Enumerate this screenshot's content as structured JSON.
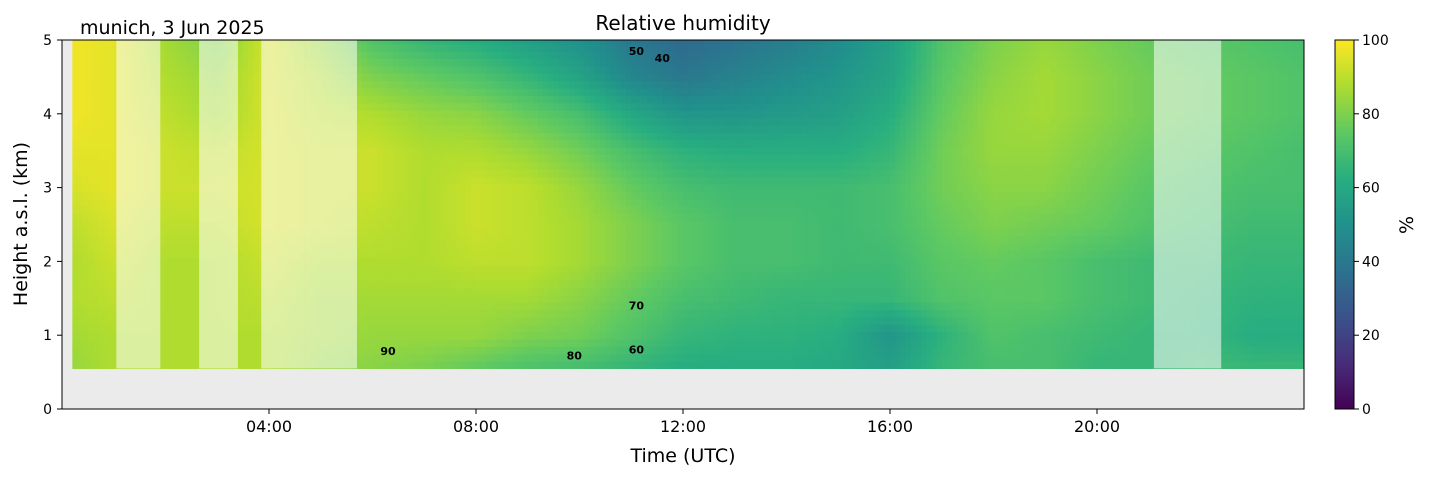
{
  "chart_data": {
    "type": "heatmap",
    "title": "Relative humidity",
    "subtitle": "munich, 3 Jun 2025",
    "xlabel": "Time (UTC)",
    "ylabel": "Height a.s.l. (km)",
    "xlim": [
      0,
      24
    ],
    "ylim": [
      0,
      5
    ],
    "x_ticks": [
      {
        "value": 4,
        "label": "04:00"
      },
      {
        "value": 8,
        "label": "08:00"
      },
      {
        "value": 12,
        "label": "12:00"
      },
      {
        "value": 16,
        "label": "16:00"
      },
      {
        "value": 20,
        "label": "20:00"
      }
    ],
    "y_ticks": [
      {
        "value": 0,
        "label": "0"
      },
      {
        "value": 1,
        "label": "1"
      },
      {
        "value": 2,
        "label": "2"
      },
      {
        "value": 3,
        "label": "3"
      },
      {
        "value": 4,
        "label": "4"
      },
      {
        "value": 5,
        "label": "5"
      }
    ],
    "colorbar": {
      "label": "%",
      "colormap": "viridis",
      "range": [
        0,
        100
      ],
      "ticks": [
        {
          "value": 0,
          "label": "0"
        },
        {
          "value": 20,
          "label": "20"
        },
        {
          "value": 40,
          "label": "40"
        },
        {
          "value": 60,
          "label": "60"
        },
        {
          "value": 80,
          "label": "80"
        },
        {
          "value": 100,
          "label": "100"
        }
      ]
    },
    "data_height_range_km": [
      0.55,
      5
    ],
    "no_data_fill": "#ebebeb",
    "masked_time_ranges": [
      [
        1.05,
        1.9
      ],
      [
        2.65,
        3.4
      ],
      [
        3.85,
        4.7
      ],
      [
        4.7,
        5.7
      ],
      [
        21.1,
        22.4
      ]
    ],
    "contour_labels": [
      {
        "value": "90",
        "t": 6.3,
        "h": 0.73
      },
      {
        "value": "80",
        "t": 9.9,
        "h": 0.67
      },
      {
        "value": "60",
        "t": 11.1,
        "h": 0.75
      },
      {
        "value": "70",
        "t": 11.1,
        "h": 1.35
      },
      {
        "value": "50",
        "t": 11.1,
        "h": 4.8
      },
      {
        "value": "40",
        "t": 11.6,
        "h": 4.7
      }
    ],
    "rh_field": {
      "times": [
        0.2,
        1.0,
        2.0,
        3.0,
        4.0,
        5.0,
        6.0,
        7.0,
        8.0,
        9.0,
        10.0,
        11.0,
        12.0,
        13.0,
        14.0,
        15.0,
        16.0,
        17.0,
        18.0,
        19.0,
        20.0,
        21.0,
        22.0,
        23.0,
        23.9
      ],
      "heights": [
        0.6,
        1.0,
        1.5,
        2.0,
        2.5,
        3.0,
        3.5,
        4.0,
        4.5,
        5.0
      ],
      "values": [
        [
          84,
          88,
          88,
          88,
          88,
          84,
          82,
          80,
          76,
          72,
          70,
          66,
          62,
          62,
          62,
          60,
          56,
          66,
          70,
          70,
          66,
          66,
          68,
          66,
          66
        ],
        [
          86,
          88,
          88,
          88,
          88,
          86,
          84,
          84,
          84,
          80,
          78,
          72,
          66,
          64,
          64,
          62,
          52,
          64,
          72,
          70,
          68,
          66,
          66,
          62,
          62
        ],
        [
          88,
          90,
          88,
          88,
          90,
          86,
          86,
          86,
          86,
          86,
          82,
          76,
          70,
          68,
          66,
          66,
          66,
          72,
          74,
          74,
          70,
          68,
          66,
          64,
          64
        ],
        [
          88,
          92,
          88,
          88,
          92,
          88,
          88,
          88,
          90,
          90,
          86,
          80,
          74,
          70,
          70,
          68,
          68,
          74,
          76,
          74,
          70,
          68,
          68,
          66,
          66
        ],
        [
          90,
          94,
          90,
          90,
          94,
          92,
          90,
          88,
          92,
          90,
          86,
          80,
          74,
          70,
          70,
          68,
          70,
          76,
          80,
          78,
          76,
          72,
          70,
          68,
          68
        ],
        [
          94,
          96,
          92,
          92,
          94,
          92,
          92,
          88,
          92,
          90,
          84,
          76,
          70,
          68,
          68,
          68,
          70,
          78,
          82,
          82,
          78,
          74,
          72,
          70,
          70
        ],
        [
          96,
          96,
          92,
          90,
          94,
          92,
          92,
          88,
          88,
          84,
          78,
          70,
          64,
          62,
          62,
          62,
          66,
          78,
          84,
          84,
          80,
          76,
          74,
          72,
          70
        ],
        [
          98,
          96,
          90,
          86,
          94,
          90,
          88,
          84,
          82,
          76,
          70,
          60,
          52,
          52,
          54,
          56,
          62,
          76,
          84,
          86,
          82,
          78,
          76,
          74,
          72
        ],
        [
          98,
          96,
          88,
          84,
          94,
          88,
          80,
          76,
          72,
          66,
          58,
          46,
          40,
          44,
          48,
          52,
          58,
          74,
          82,
          86,
          82,
          78,
          76,
          74,
          72
        ],
        [
          98,
          96,
          86,
          80,
          94,
          84,
          72,
          66,
          62,
          56,
          50,
          40,
          34,
          38,
          42,
          48,
          56,
          72,
          80,
          84,
          80,
          76,
          74,
          72,
          70
        ]
      ]
    }
  }
}
